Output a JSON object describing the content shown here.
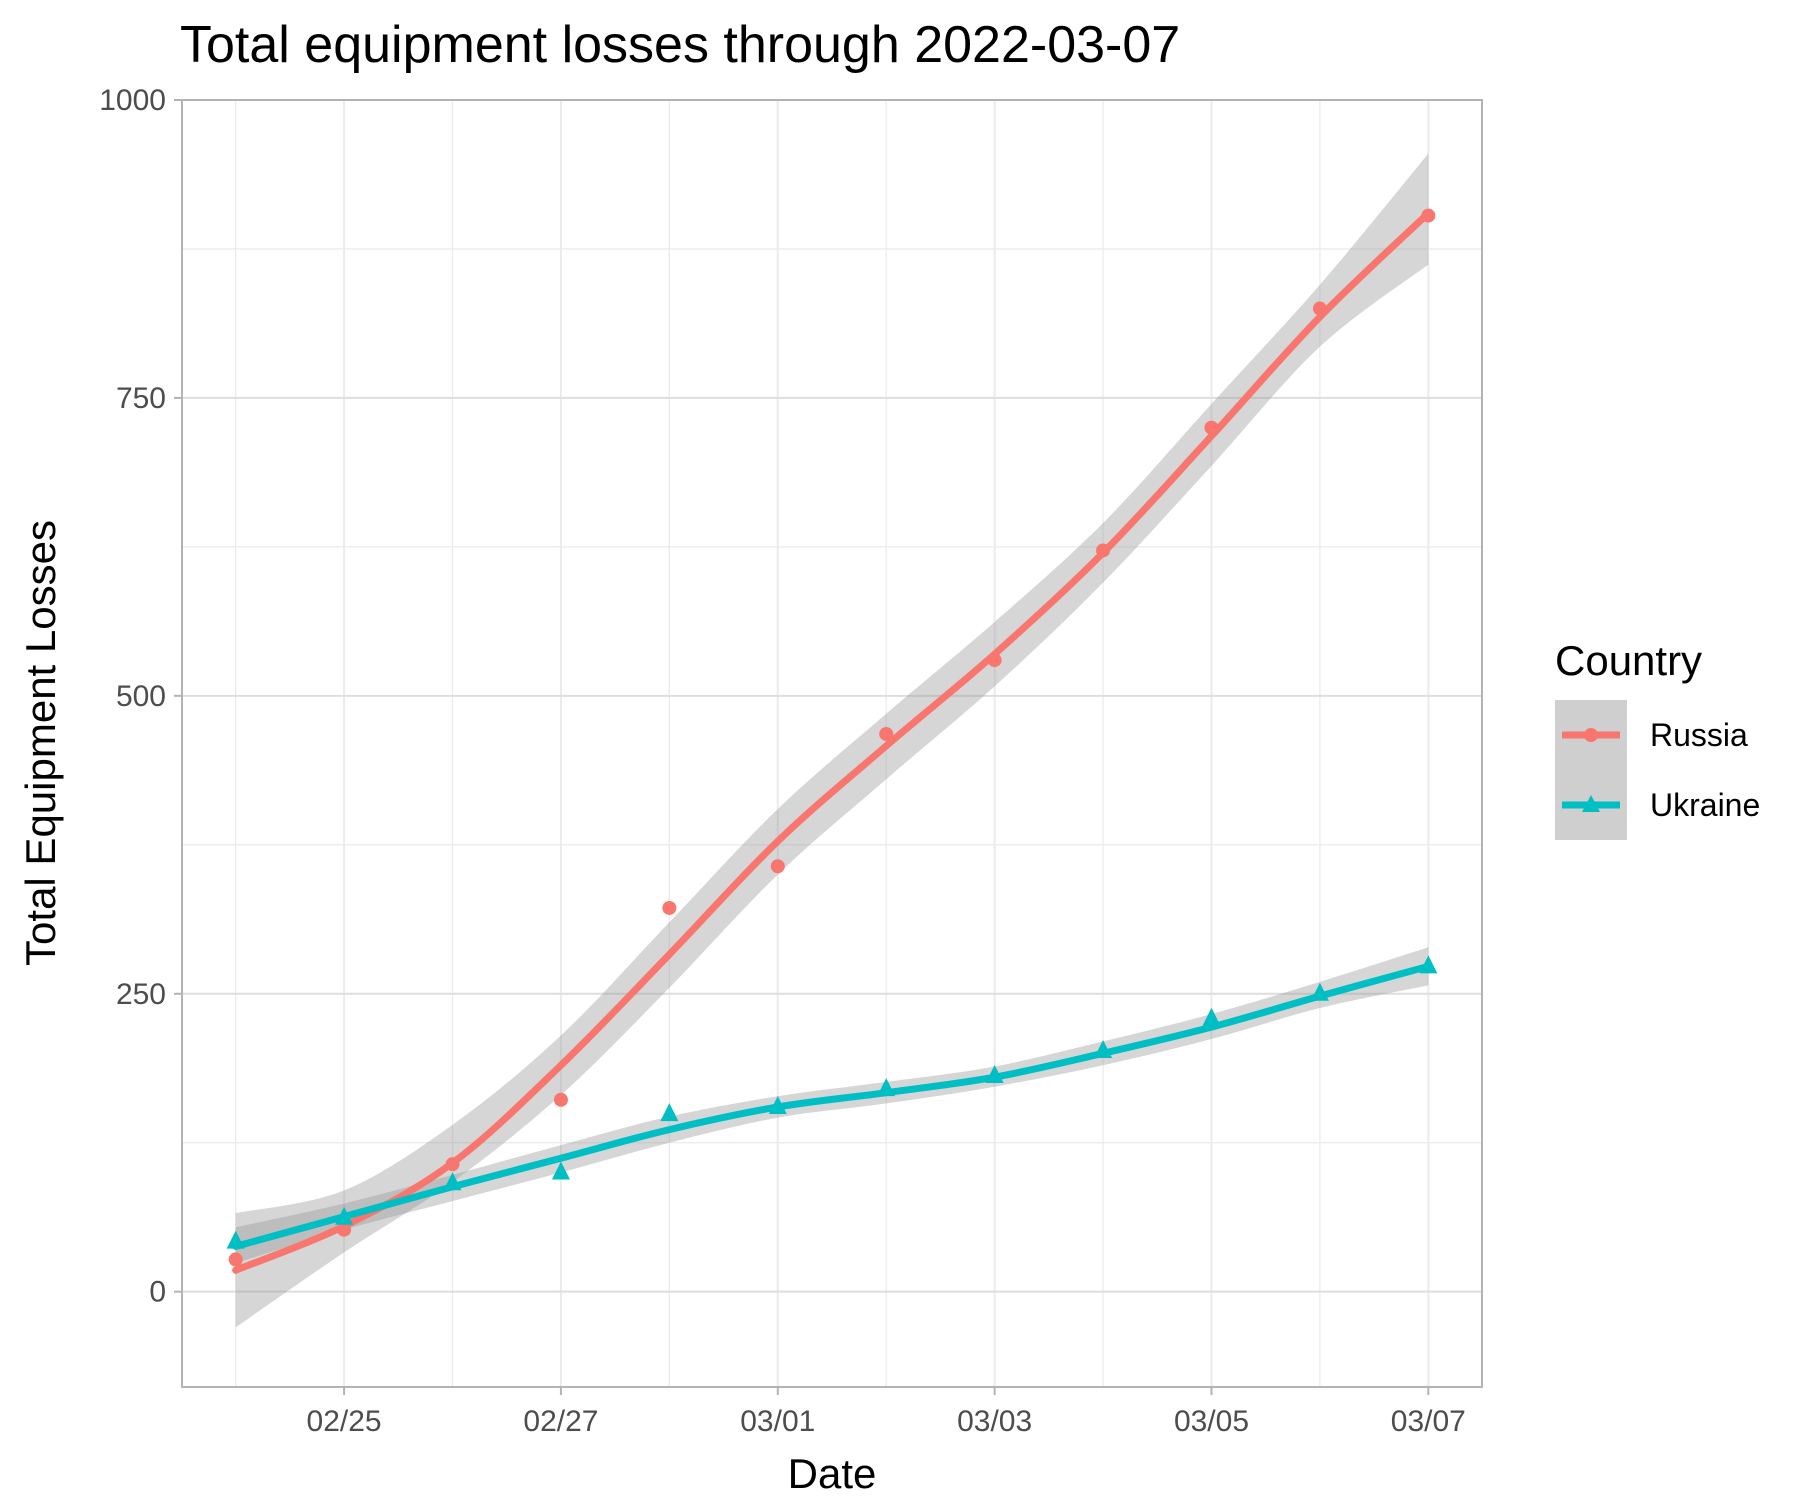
{
  "chart_data": {
    "type": "line",
    "title": "Total equipment losses through 2022-03-07",
    "xlabel": "Date",
    "ylabel": "Total Equipment Losses",
    "x": [
      "2022-02-24",
      "2022-02-25",
      "2022-02-26",
      "2022-02-27",
      "2022-02-28",
      "2022-03-01",
      "2022-03-02",
      "2022-03-03",
      "2022-03-04",
      "2022-03-05",
      "2022-03-06",
      "2022-03-07"
    ],
    "x_ticks": [
      "2022-02-25",
      "2022-02-27",
      "2022-03-01",
      "2022-03-03",
      "2022-03-05",
      "2022-03-07"
    ],
    "x_tick_labels": [
      "02/25",
      "02/27",
      "03/01",
      "03/03",
      "03/05",
      "03/07"
    ],
    "ylim": [
      -80,
      1000
    ],
    "y_ticks": [
      0,
      250,
      500,
      750,
      1000
    ],
    "y_tick_labels": [
      "0",
      "250",
      "500",
      "750",
      "1000"
    ],
    "grid": true,
    "legend": {
      "title": "Country",
      "position": "right"
    },
    "series": [
      {
        "name": "Russia",
        "color": "#F8766D",
        "marker": "circle",
        "points": [
          27,
          52,
          107,
          161,
          322,
          357,
          468,
          530,
          622,
          725,
          825,
          903
        ],
        "smooth": [
          18,
          55,
          108,
          190,
          283,
          378,
          458,
          535,
          620,
          718,
          818,
          905
        ],
        "ci_lower": [
          -30,
          33,
          92,
          165,
          255,
          350,
          430,
          508,
          595,
          693,
          793,
          862
        ],
        "ci_upper": [
          66,
          85,
          140,
          215,
          310,
          405,
          485,
          562,
          645,
          745,
          845,
          955
        ]
      },
      {
        "name": "Ukraine",
        "color": "#00BFC4",
        "marker": "triangle",
        "points": [
          42,
          62,
          91,
          100,
          149,
          155,
          170,
          181,
          202,
          229,
          250,
          273
        ],
        "smooth": [
          38,
          63,
          88,
          112,
          136,
          155,
          167,
          180,
          200,
          222,
          248,
          273
        ],
        "ci_lower": [
          24,
          52,
          76,
          100,
          125,
          146,
          158,
          172,
          190,
          212,
          238,
          257
        ],
        "ci_upper": [
          54,
          74,
          98,
          123,
          147,
          164,
          176,
          189,
          210,
          233,
          260,
          289
        ]
      }
    ]
  }
}
